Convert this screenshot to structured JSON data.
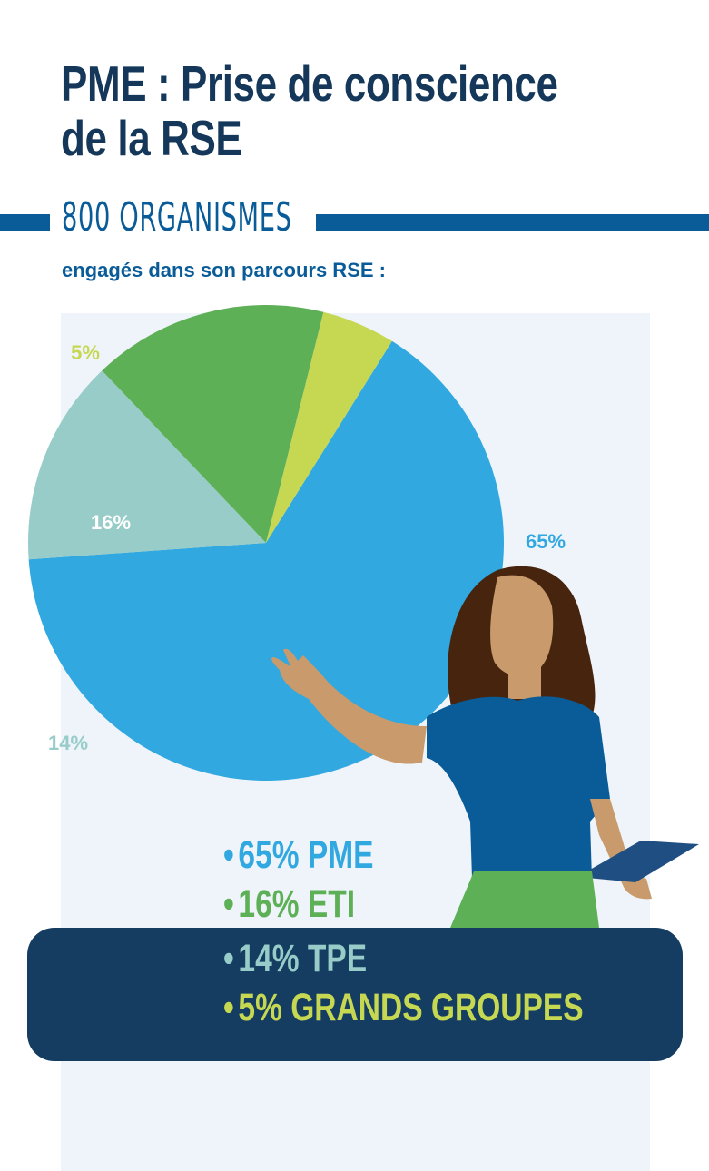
{
  "title_line1": "PME : Prise de conscience",
  "title_line2": "de la RSE",
  "count_label": "800 ORGANISMES",
  "sub_label": "engagés dans son parcours RSE :",
  "colors": {
    "dark_navy": "#14375a",
    "brand_blue": "#0a5c99",
    "pme": "#31a8e0",
    "tpe": "#97ccc8",
    "eti": "#5eb057",
    "grands_groupes": "#c6d752",
    "legend_box": "#143d61",
    "panel": "#eff4fb"
  },
  "chart_data": {
    "type": "pie",
    "slices": [
      {
        "category": "PME",
        "value": 65,
        "label": "65%",
        "color": "#31a8e0"
      },
      {
        "category": "TPE",
        "value": 14,
        "label": "14%",
        "color": "#97ccc8"
      },
      {
        "category": "ETI",
        "value": 16,
        "label": "16%",
        "color": "#5eb057"
      },
      {
        "category": "GRANDS GROUPES",
        "value": 5,
        "label": "5%",
        "color": "#c6d752"
      }
    ]
  },
  "legend": [
    {
      "bullet": "•",
      "text": "65% PME",
      "color": "#31a8e0"
    },
    {
      "bullet": "•",
      "text": "16% ETI",
      "color": "#5eb057"
    },
    {
      "bullet": "•",
      "text": "14% TPE",
      "color": "#97ccc8"
    },
    {
      "bullet": "•",
      "text": "5% GRANDS GROUPES",
      "color": "#c6d752"
    }
  ]
}
